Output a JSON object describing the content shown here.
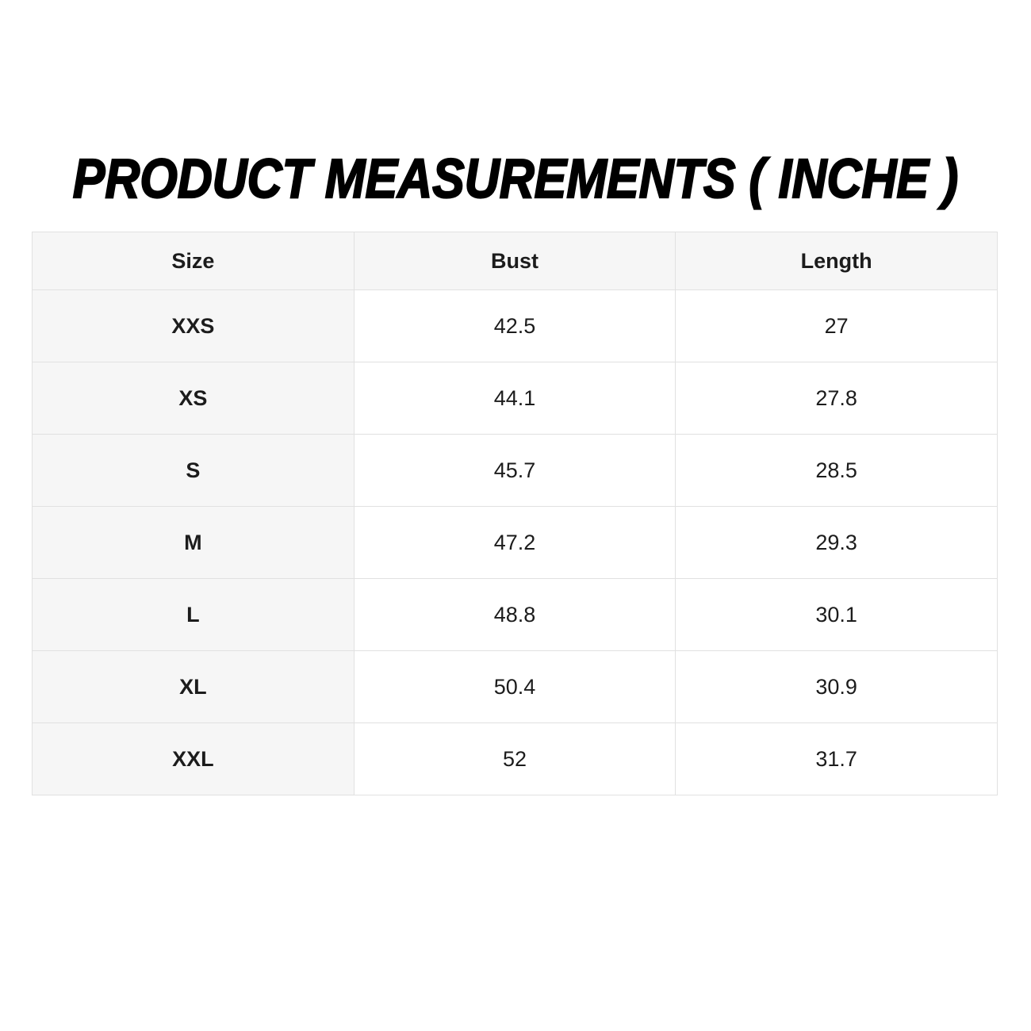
{
  "title": "PRODUCT MEASUREMENTS ( INCHE )",
  "table": {
    "columns": [
      "Size",
      "Bust",
      "Length"
    ],
    "rows": [
      {
        "size": "XXS",
        "bust": "42.5",
        "length": "27"
      },
      {
        "size": "XS",
        "bust": "44.1",
        "length": "27.8"
      },
      {
        "size": "S",
        "bust": "45.7",
        "length": "28.5"
      },
      {
        "size": "M",
        "bust": "47.2",
        "length": "29.3"
      },
      {
        "size": "L",
        "bust": "48.8",
        "length": "30.1"
      },
      {
        "size": "XL",
        "bust": "50.4",
        "length": "30.9"
      },
      {
        "size": "XXL",
        "bust": "52",
        "length": "31.7"
      }
    ]
  },
  "colors": {
    "page_background": "#ffffff",
    "header_background": "#f6f6f6",
    "size_column_background": "#f6f6f6",
    "cell_background": "#ffffff",
    "border": "#e1e1e1",
    "text": "#1c1c1c",
    "title_text": "#000000"
  }
}
